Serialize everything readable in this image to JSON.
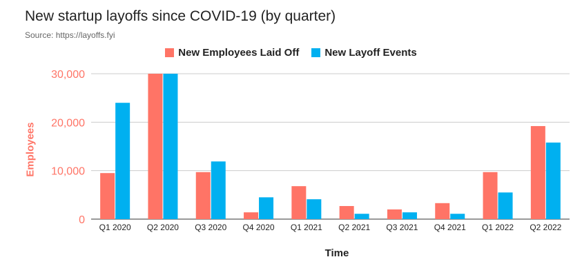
{
  "chart_data": {
    "type": "bar",
    "title": "New startup layoffs since COVID-19 (by quarter)",
    "subtitle": "Source: https://layoffs.fyi",
    "xlabel": "Time",
    "ylabel": "Employees",
    "categories": [
      "Q1 2020",
      "Q2 2020",
      "Q3 2020",
      "Q4 2020",
      "Q1 2021",
      "Q2 2021",
      "Q3 2021",
      "Q4 2021",
      "Q1 2022",
      "Q2 2022"
    ],
    "series": [
      {
        "name": "New Employees Laid Off",
        "color": "#ff7466",
        "values": [
          9500,
          30000,
          9700,
          1400,
          6800,
          2700,
          2000,
          3300,
          9700,
          19200
        ]
      },
      {
        "name": "New Layoff Events",
        "color": "#00b0f0",
        "values": [
          24000,
          30000,
          11900,
          4500,
          4100,
          1100,
          1400,
          1100,
          5500,
          15800
        ]
      }
    ],
    "yticks": [
      "0",
      "10,000",
      "20,000",
      "30,000"
    ],
    "ytick_values": [
      0,
      10000,
      20000,
      30000
    ],
    "ylim": [
      0,
      30000
    ],
    "ylabel_color": "#ff7466",
    "grid": true,
    "legend_position": "top-center"
  }
}
